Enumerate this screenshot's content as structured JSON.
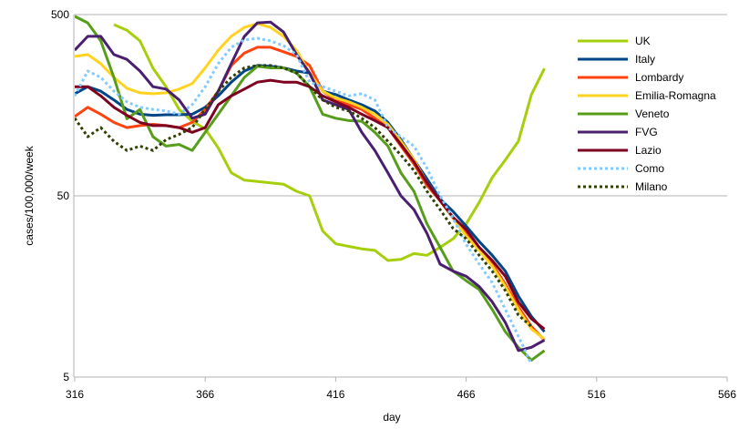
{
  "chart_data": {
    "type": "line",
    "xlabel": "day",
    "ylabel": "cases/100,000/week",
    "xlim": [
      316,
      566
    ],
    "ylim": [
      5,
      500
    ],
    "y_scale": "log",
    "x_ticks": [
      316,
      366,
      416,
      466,
      516,
      566
    ],
    "y_ticks": [
      5,
      50,
      500
    ],
    "grid": "horizontal major",
    "legend_position": "right",
    "x": [
      316,
      321,
      326,
      331,
      336,
      341,
      346,
      351,
      356,
      361,
      366,
      371,
      376,
      381,
      386,
      391,
      396,
      401,
      406,
      411,
      416,
      421,
      426,
      431,
      436,
      441,
      446,
      451,
      456,
      461,
      466,
      471,
      476,
      481,
      486,
      491,
      496
    ],
    "series": [
      {
        "name": "UK",
        "color": "#a5cf0c",
        "dash": "solid",
        "values": [
          null,
          null,
          null,
          440,
          410,
          358,
          253,
          200,
          150,
          129,
          117,
          92,
          67,
          61,
          60,
          59,
          58,
          53,
          50,
          32,
          27.2,
          26.3,
          25.5,
          25,
          22,
          22.3,
          24,
          23.5,
          26,
          29,
          35,
          46,
          63,
          79,
          100,
          181,
          252
        ]
      },
      {
        "name": "Italy",
        "color": "#004586",
        "dash": "solid",
        "values": [
          183,
          200,
          189,
          169,
          150,
          141,
          139,
          140,
          140,
          141,
          154,
          178,
          212,
          244,
          262,
          259,
          254,
          244,
          238,
          189,
          181,
          169,
          159,
          147,
          127,
          102,
          79,
          62,
          48,
          41,
          34,
          28,
          23.5,
          19.2,
          14,
          10.8,
          8.9
        ]
      },
      {
        "name": "Lombardy",
        "color": "#ff420e",
        "dash": "solid",
        "values": [
          137,
          154,
          141,
          127,
          119,
          122,
          124,
          122,
          119,
          127,
          150,
          189,
          262,
          307,
          330,
          330,
          312,
          294,
          262,
          189,
          169,
          159,
          150,
          134,
          119,
          94,
          75,
          57,
          47,
          37.5,
          31,
          25.5,
          21,
          16.3,
          12.2,
          9.5,
          8
        ]
      },
      {
        "name": "Emilia-Romagna",
        "color": "#ffd320",
        "dash": "solid",
        "values": [
          294,
          301,
          268,
          225,
          196,
          185,
          183,
          185,
          194,
          208,
          254,
          318,
          379,
          425,
          445,
          425,
          379,
          318,
          238,
          189,
          173,
          165,
          154,
          141,
          124,
          100,
          79,
          59,
          47,
          37.5,
          30,
          25,
          20.5,
          15.8,
          11.8,
          9.2,
          8.1
        ]
      },
      {
        "name": "Veneto",
        "color": "#579d1c",
        "dash": "solid",
        "values": [
          489,
          450,
          358,
          225,
          133,
          150,
          106,
          94,
          96,
          89,
          112,
          141,
          178,
          225,
          259,
          254,
          254,
          238,
          200,
          141,
          134,
          130,
          129,
          112,
          94,
          67,
          53,
          35,
          26,
          19.2,
          17,
          15.2,
          11.8,
          8.9,
          7.3,
          6.2,
          7.0
        ]
      },
      {
        "name": "FVG",
        "color": "#4b1f6f",
        "dash": "solid",
        "values": [
          318,
          379,
          379,
          301,
          283,
          244,
          200,
          194,
          169,
          134,
          141,
          189,
          268,
          379,
          450,
          455,
          401,
          301,
          238,
          169,
          159,
          150,
          112,
          89,
          67,
          50,
          42,
          31,
          21,
          19.2,
          18,
          15.8,
          13,
          10,
          7,
          7.3,
          8
        ]
      },
      {
        "name": "Lazio",
        "color": "#7e0021",
        "dash": "solid",
        "values": [
          200,
          200,
          178,
          154,
          139,
          127,
          122,
          122,
          119,
          112,
          119,
          159,
          178,
          194,
          212,
          217,
          212,
          212,
          200,
          178,
          165,
          154,
          141,
          130,
          119,
          96,
          77,
          59,
          47,
          38,
          32.6,
          26,
          22,
          18,
          13,
          10.5,
          9.2
        ]
      },
      {
        "name": "Como",
        "color": "#83caff",
        "dash": "dotted",
        "values": [
          178,
          244,
          225,
          189,
          165,
          154,
          150,
          147,
          141,
          159,
          200,
          268,
          330,
          362,
          370,
          358,
          337,
          301,
          212,
          200,
          189,
          178,
          183,
          169,
          119,
          106,
          94,
          71,
          50,
          37.5,
          27,
          21,
          16.6,
          11.8,
          8.4,
          5.9,
          null
        ]
      },
      {
        "name": "Milano",
        "color": "#314004",
        "dash": "dotted",
        "values": [
          134,
          106,
          119,
          100,
          89,
          94,
          89,
          102,
          109,
          119,
          150,
          189,
          225,
          254,
          262,
          262,
          254,
          238,
          200,
          169,
          154,
          147,
          134,
          119,
          100,
          84,
          69,
          53,
          42,
          33,
          29,
          23.5,
          19.2,
          15,
          11,
          9.5,
          null
        ]
      }
    ]
  }
}
